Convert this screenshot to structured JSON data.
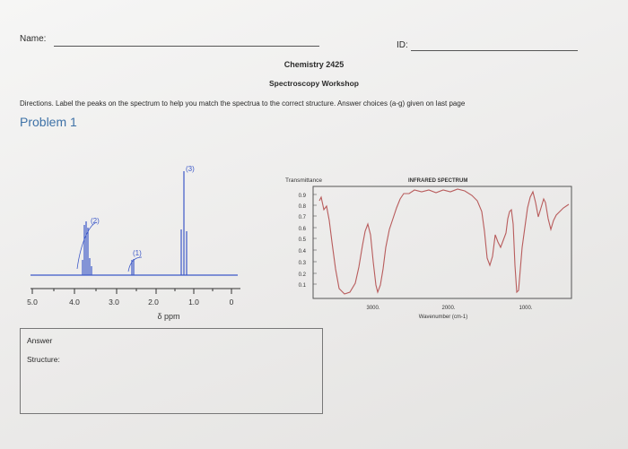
{
  "header": {
    "name_label": "Name:",
    "id_label": "ID:",
    "course": "Chemistry 2425",
    "workshop": "Spectroscopy Workshop"
  },
  "directions": "Directions. Label the peaks on the spectrum to help you match the spectrua to the correct structure. Answer choices (a-g) given on last page",
  "problem_title": "Problem 1",
  "nmr": {
    "axis_label": "δ ppm",
    "ticks": [
      "5.0",
      "4.0",
      "3.0",
      "2.0",
      "1.0",
      "0"
    ],
    "peak_labels": [
      "(1)",
      "(2)",
      "(3)"
    ]
  },
  "ir": {
    "ylabel": "Transmittance",
    "title": "INFRARED SPECTRUM",
    "xlabel": "Wavenumber (cm-1)",
    "yticks": [
      "0.9",
      "0.8",
      "0.7",
      "0.6",
      "0.5",
      "0.4",
      "0.3",
      "0.2",
      "0.1"
    ],
    "xticks": [
      "3000.",
      "2000.",
      "1000."
    ],
    "line_color": "#b85c5c"
  },
  "answer": {
    "answer_label": "Answer",
    "structure_label": "Structure:"
  }
}
